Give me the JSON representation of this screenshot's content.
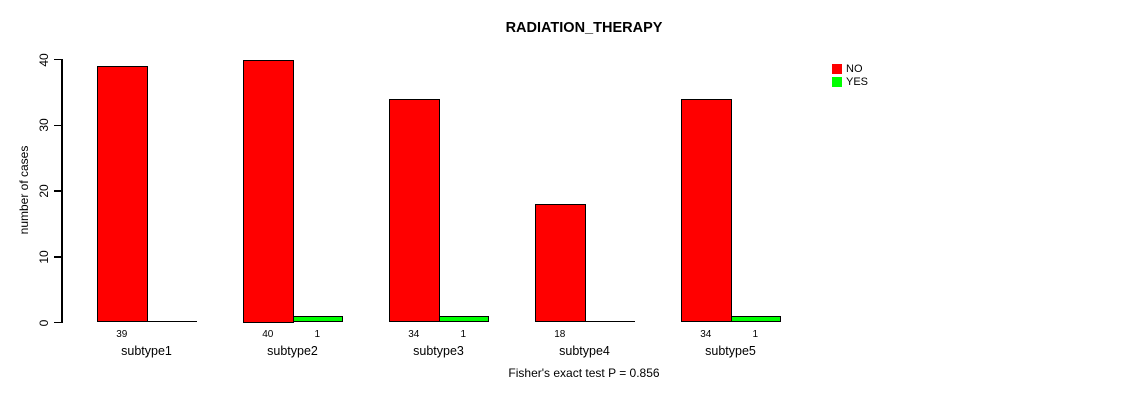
{
  "chart_data": {
    "type": "bar",
    "title": "RADIATION_THERAPY",
    "ylabel": "number of cases",
    "xlabel": "",
    "footer": "Fisher's exact test P = 0.856",
    "categories": [
      "subtype1",
      "subtype2",
      "subtype3",
      "subtype4",
      "subtype5"
    ],
    "series": [
      {
        "name": "NO",
        "color": "#ff0000",
        "values": [
          39,
          40,
          34,
          18,
          34
        ],
        "bar_labels": [
          "39",
          "40",
          "34",
          "18",
          "34"
        ]
      },
      {
        "name": "YES",
        "color": "#00ff00",
        "values": [
          0,
          1,
          1,
          0,
          1
        ],
        "bar_labels": [
          "",
          "1",
          "1",
          "",
          "1"
        ]
      }
    ],
    "yticks": [
      0,
      10,
      20,
      30,
      40
    ],
    "ylim": [
      0,
      40
    ],
    "grid": false,
    "legend_position": "top-right",
    "legend": [
      {
        "label": "NO",
        "color": "#ff0000"
      },
      {
        "label": "YES",
        "color": "#00ff00"
      }
    ]
  },
  "colors": {
    "background": "#ffffff",
    "axis": "#000000",
    "text": "#000000"
  }
}
